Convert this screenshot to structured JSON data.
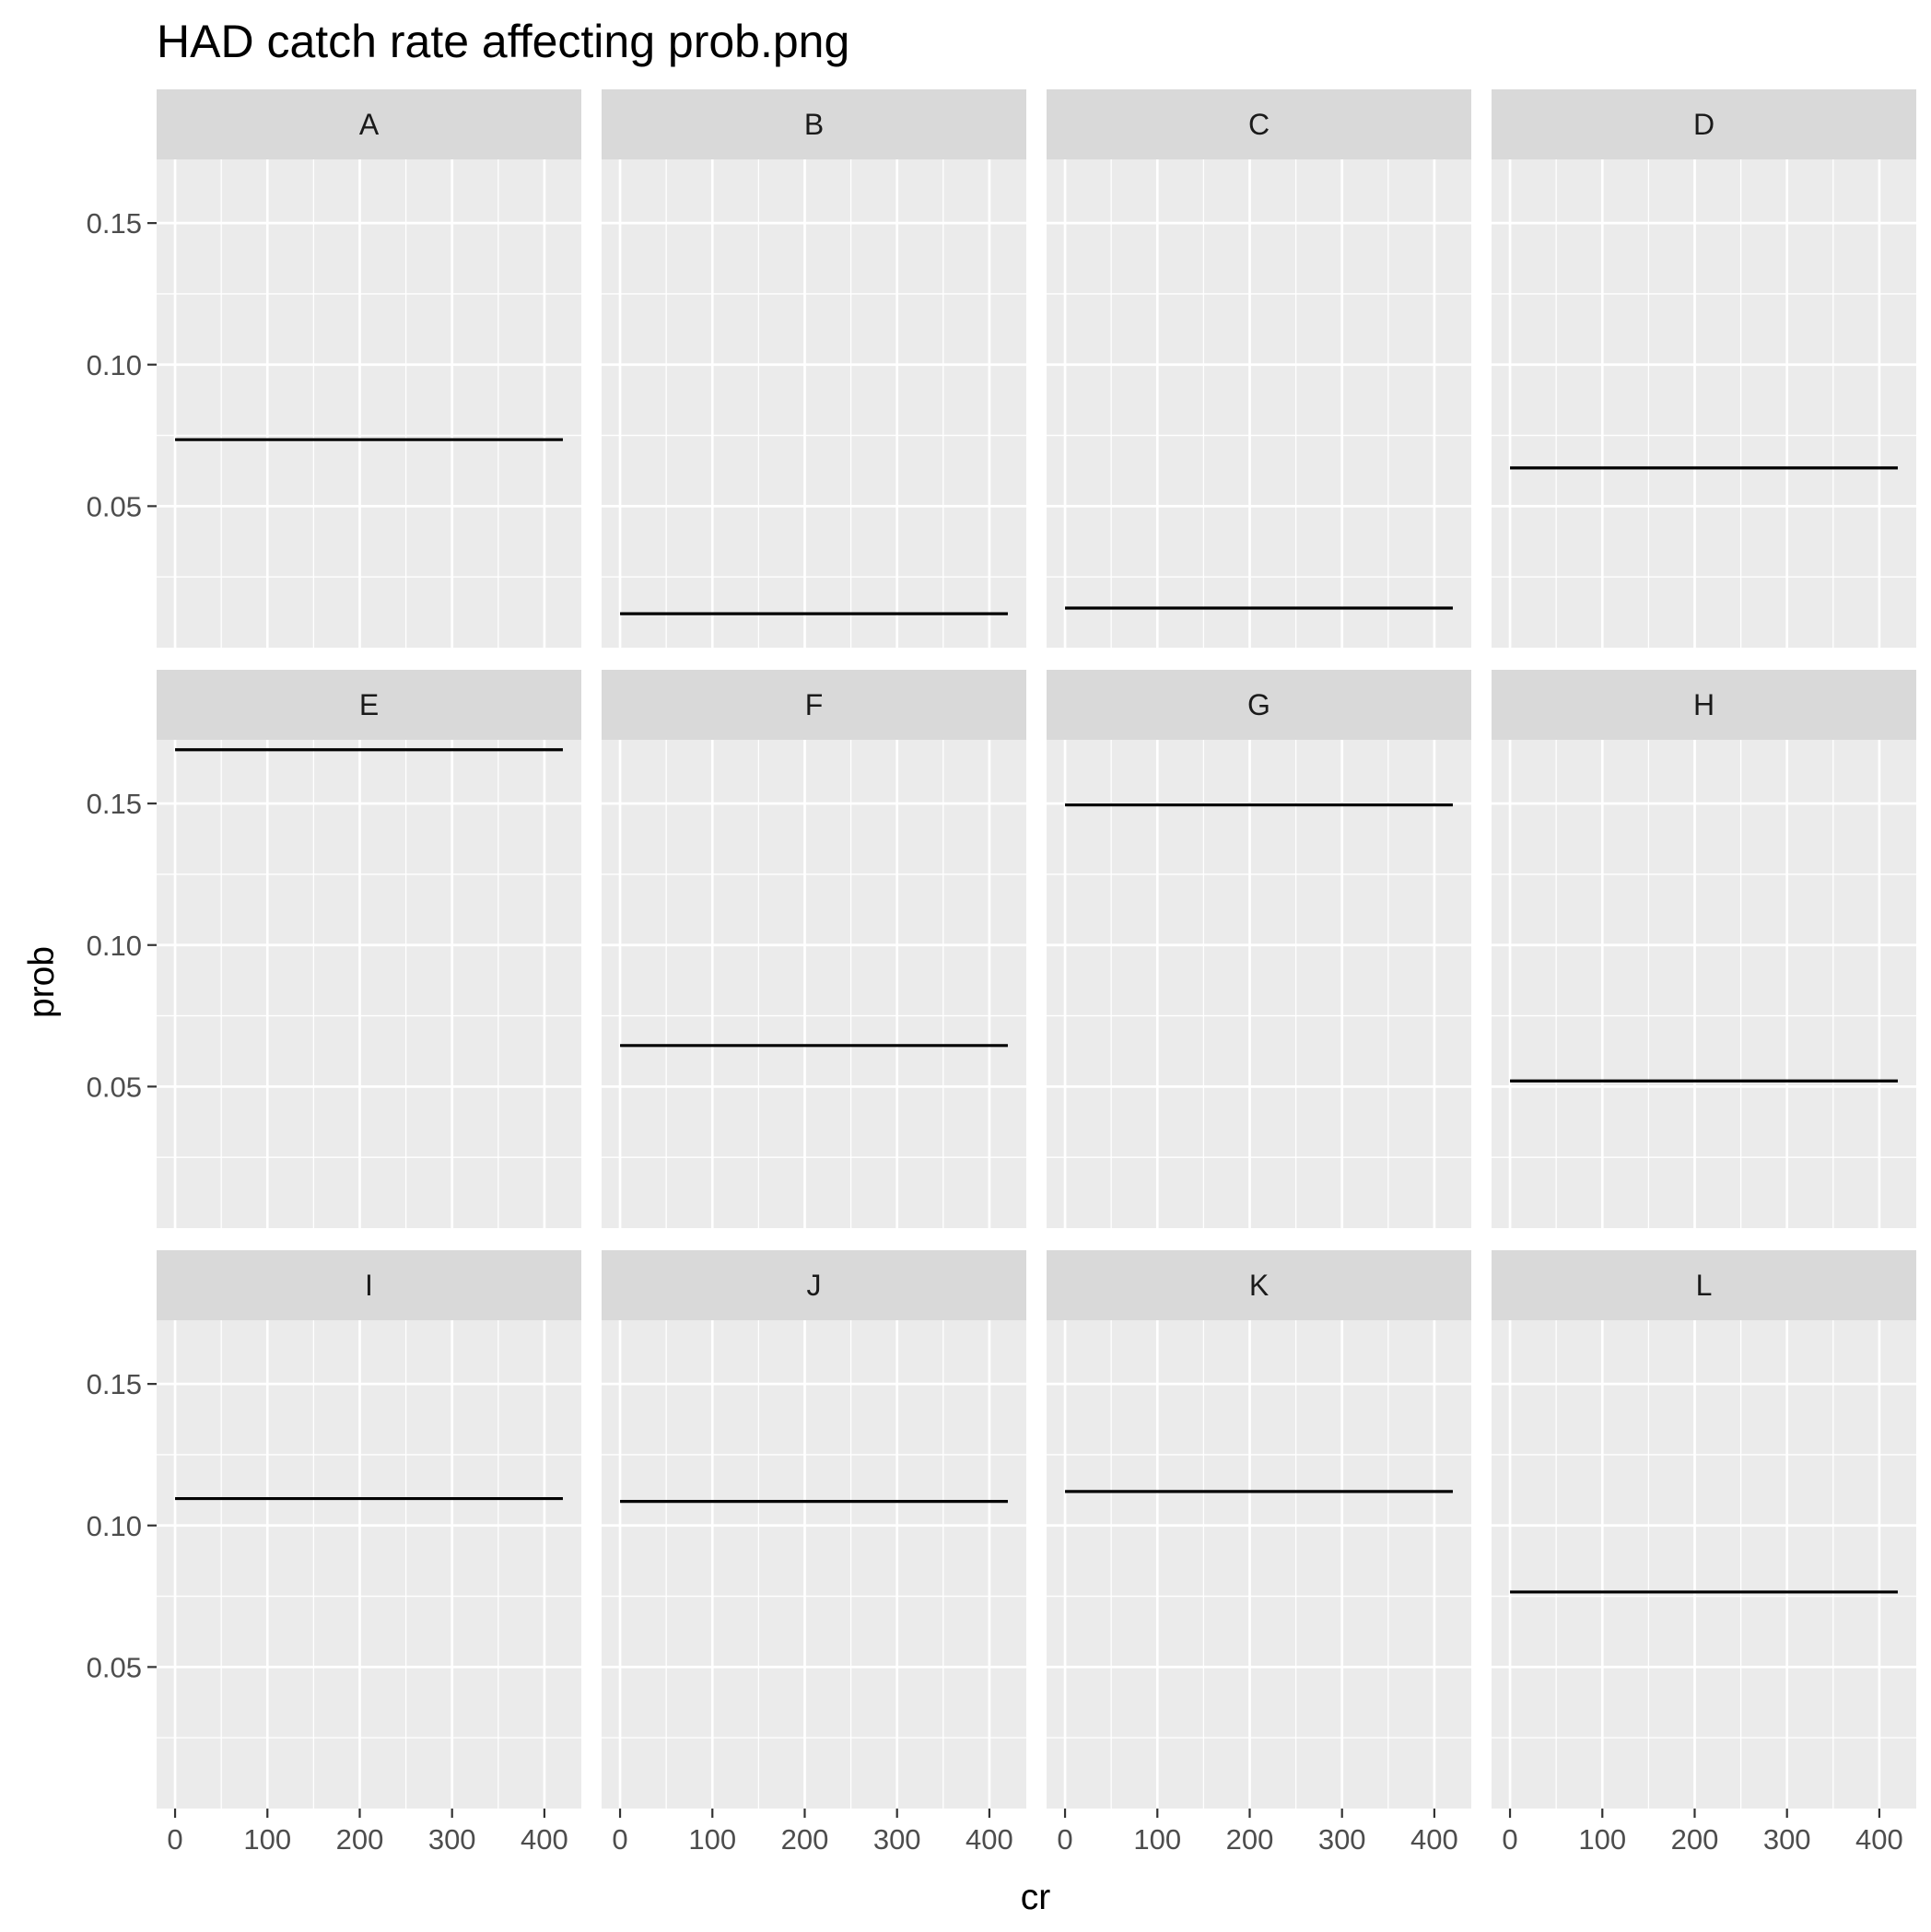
{
  "chart_data": {
    "type": "line",
    "title": "HAD catch rate affecting prob.png",
    "xlabel": "cr",
    "ylabel": "prob",
    "facet_layout": {
      "rows": 3,
      "cols": 4
    },
    "xlim": [
      -20,
      440
    ],
    "ylim": [
      0.0,
      0.1725
    ],
    "x_ticks": [
      0,
      100,
      200,
      300,
      400
    ],
    "x_tick_labels": [
      "0",
      "100",
      "200",
      "300",
      "400"
    ],
    "y_ticks": [
      0.05,
      0.1,
      0.15
    ],
    "y_tick_labels": [
      "0.05",
      "0.10",
      "0.15"
    ],
    "x_range": [
      0,
      420
    ],
    "grid": true,
    "panels": [
      {
        "label": "A",
        "value": 0.0735
      },
      {
        "label": "B",
        "value": 0.012
      },
      {
        "label": "C",
        "value": 0.014
      },
      {
        "label": "D",
        "value": 0.0635
      },
      {
        "label": "E",
        "value": 0.169
      },
      {
        "label": "F",
        "value": 0.0645
      },
      {
        "label": "G",
        "value": 0.1495
      },
      {
        "label": "H",
        "value": 0.052
      },
      {
        "label": "I",
        "value": 0.1095
      },
      {
        "label": "J",
        "value": 0.1085
      },
      {
        "label": "K",
        "value": 0.112
      },
      {
        "label": "L",
        "value": 0.0765
      }
    ]
  }
}
